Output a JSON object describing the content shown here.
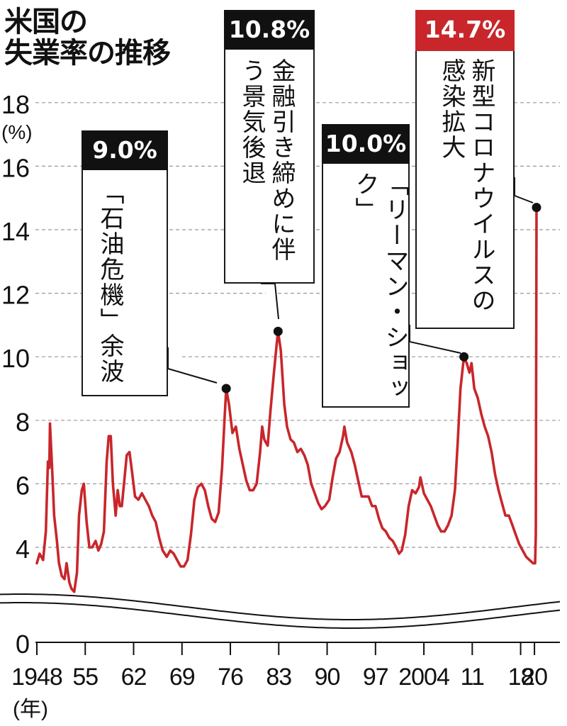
{
  "title_line1": "米国の",
  "title_line2": "失業率の推移",
  "colors": {
    "line": "#c8262b",
    "text": "#111111",
    "grid": "#999999",
    "red_box": "#c8262b"
  },
  "chart_data": {
    "type": "line",
    "title": "米国の失業率の推移",
    "ylabel_unit": "(%)",
    "xlabel_unit": "(年)",
    "ylim": [
      0,
      18
    ],
    "yticks": [
      0,
      4,
      6,
      8,
      10,
      12,
      14,
      16,
      18
    ],
    "axis_break": "between 0 and 4",
    "grid": "horizontal dashed",
    "x_tick_labels": [
      "1948",
      "55",
      "62",
      "69",
      "76",
      "83",
      "90",
      "97",
      "2004",
      "11",
      "18",
      "20"
    ],
    "x_tick_years": [
      1948,
      1955,
      1962,
      1969,
      1976,
      1983,
      1990,
      1997,
      2004,
      2011,
      2018,
      2020
    ],
    "series": [
      {
        "values": [
          [
            1948.0,
            3.5
          ],
          [
            1948.4,
            3.8
          ],
          [
            1948.9,
            3.6
          ],
          [
            1949.3,
            4.5
          ],
          [
            1949.6,
            6.7
          ],
          [
            1949.8,
            6.5
          ],
          [
            1949.9,
            7.9
          ],
          [
            1950.2,
            6.5
          ],
          [
            1950.5,
            5.0
          ],
          [
            1950.9,
            4.2
          ],
          [
            1951.2,
            3.5
          ],
          [
            1951.6,
            3.1
          ],
          [
            1952.0,
            3.0
          ],
          [
            1952.3,
            3.5
          ],
          [
            1952.7,
            2.9
          ],
          [
            1953.0,
            2.7
          ],
          [
            1953.4,
            2.6
          ],
          [
            1953.8,
            3.2
          ],
          [
            1954.1,
            5.0
          ],
          [
            1954.5,
            5.8
          ],
          [
            1954.8,
            6.0
          ],
          [
            1955.2,
            4.8
          ],
          [
            1955.6,
            4.0
          ],
          [
            1956.0,
            4.0
          ],
          [
            1956.5,
            4.2
          ],
          [
            1956.9,
            3.9
          ],
          [
            1957.3,
            4.1
          ],
          [
            1957.7,
            4.5
          ],
          [
            1958.1,
            6.7
          ],
          [
            1958.4,
            7.5
          ],
          [
            1958.7,
            7.5
          ],
          [
            1959.0,
            6.0
          ],
          [
            1959.4,
            5.0
          ],
          [
            1959.7,
            5.8
          ],
          [
            1960.0,
            5.3
          ],
          [
            1960.3,
            5.3
          ],
          [
            1960.7,
            6.2
          ],
          [
            1961.0,
            6.9
          ],
          [
            1961.4,
            7.0
          ],
          [
            1961.7,
            6.5
          ],
          [
            1962.2,
            5.6
          ],
          [
            1962.7,
            5.5
          ],
          [
            1963.2,
            5.7
          ],
          [
            1963.7,
            5.5
          ],
          [
            1964.2,
            5.3
          ],
          [
            1964.7,
            5.0
          ],
          [
            1965.2,
            4.8
          ],
          [
            1965.7,
            4.3
          ],
          [
            1966.2,
            3.9
          ],
          [
            1966.8,
            3.7
          ],
          [
            1967.3,
            3.9
          ],
          [
            1967.8,
            3.8
          ],
          [
            1968.3,
            3.6
          ],
          [
            1968.8,
            3.4
          ],
          [
            1969.3,
            3.4
          ],
          [
            1969.8,
            3.6
          ],
          [
            1970.3,
            4.4
          ],
          [
            1970.8,
            5.5
          ],
          [
            1971.3,
            5.9
          ],
          [
            1971.8,
            6.0
          ],
          [
            1972.3,
            5.8
          ],
          [
            1972.8,
            5.3
          ],
          [
            1973.3,
            4.9
          ],
          [
            1973.8,
            4.8
          ],
          [
            1974.3,
            5.1
          ],
          [
            1974.8,
            6.5
          ],
          [
            1975.2,
            8.2
          ],
          [
            1975.4,
            9.0
          ],
          [
            1975.8,
            8.5
          ],
          [
            1976.3,
            7.6
          ],
          [
            1976.8,
            7.8
          ],
          [
            1977.3,
            7.1
          ],
          [
            1977.8,
            6.6
          ],
          [
            1978.3,
            6.1
          ],
          [
            1978.8,
            5.8
          ],
          [
            1979.3,
            5.8
          ],
          [
            1979.8,
            6.0
          ],
          [
            1980.3,
            7.0
          ],
          [
            1980.6,
            7.8
          ],
          [
            1980.9,
            7.4
          ],
          [
            1981.4,
            7.2
          ],
          [
            1981.8,
            8.3
          ],
          [
            1982.3,
            9.5
          ],
          [
            1982.7,
            10.4
          ],
          [
            1982.9,
            10.8
          ],
          [
            1983.3,
            10.2
          ],
          [
            1983.8,
            8.5
          ],
          [
            1984.2,
            7.8
          ],
          [
            1984.7,
            7.4
          ],
          [
            1985.2,
            7.3
          ],
          [
            1985.7,
            7.0
          ],
          [
            1986.2,
            7.1
          ],
          [
            1986.7,
            6.9
          ],
          [
            1987.2,
            6.6
          ],
          [
            1987.7,
            6.0
          ],
          [
            1988.2,
            5.7
          ],
          [
            1988.7,
            5.4
          ],
          [
            1989.2,
            5.2
          ],
          [
            1989.7,
            5.3
          ],
          [
            1990.3,
            5.5
          ],
          [
            1990.8,
            6.2
          ],
          [
            1991.3,
            6.8
          ],
          [
            1991.8,
            7.0
          ],
          [
            1992.3,
            7.5
          ],
          [
            1992.5,
            7.8
          ],
          [
            1992.9,
            7.3
          ],
          [
            1993.5,
            7.0
          ],
          [
            1994.0,
            6.6
          ],
          [
            1994.5,
            6.1
          ],
          [
            1995.0,
            5.6
          ],
          [
            1995.5,
            5.6
          ],
          [
            1996.0,
            5.6
          ],
          [
            1996.5,
            5.3
          ],
          [
            1997.0,
            5.3
          ],
          [
            1997.5,
            4.9
          ],
          [
            1998.0,
            4.6
          ],
          [
            1998.5,
            4.5
          ],
          [
            1999.0,
            4.3
          ],
          [
            1999.5,
            4.2
          ],
          [
            2000.0,
            4.0
          ],
          [
            2000.4,
            3.8
          ],
          [
            2000.8,
            3.9
          ],
          [
            2001.3,
            4.4
          ],
          [
            2001.8,
            5.3
          ],
          [
            2002.3,
            5.8
          ],
          [
            2002.8,
            5.7
          ],
          [
            2003.3,
            5.9
          ],
          [
            2003.5,
            6.2
          ],
          [
            2004.0,
            5.7
          ],
          [
            2004.5,
            5.5
          ],
          [
            2005.0,
            5.3
          ],
          [
            2005.5,
            5.0
          ],
          [
            2006.0,
            4.7
          ],
          [
            2006.5,
            4.5
          ],
          [
            2007.0,
            4.5
          ],
          [
            2007.5,
            4.7
          ],
          [
            2008.0,
            5.0
          ],
          [
            2008.5,
            5.8
          ],
          [
            2008.9,
            7.3
          ],
          [
            2009.3,
            9.0
          ],
          [
            2009.8,
            10.0
          ],
          [
            2010.2,
            9.8
          ],
          [
            2010.6,
            9.5
          ],
          [
            2010.9,
            9.8
          ],
          [
            2011.3,
            9.0
          ],
          [
            2011.8,
            8.7
          ],
          [
            2012.3,
            8.2
          ],
          [
            2012.8,
            7.8
          ],
          [
            2013.3,
            7.5
          ],
          [
            2013.8,
            7.0
          ],
          [
            2014.3,
            6.3
          ],
          [
            2014.8,
            5.8
          ],
          [
            2015.3,
            5.4
          ],
          [
            2015.8,
            5.0
          ],
          [
            2016.3,
            5.0
          ],
          [
            2016.8,
            4.7
          ],
          [
            2017.3,
            4.4
          ],
          [
            2017.8,
            4.1
          ],
          [
            2018.3,
            3.9
          ],
          [
            2018.8,
            3.7
          ],
          [
            2019.3,
            3.6
          ],
          [
            2019.8,
            3.5
          ],
          [
            2020.1,
            3.5
          ],
          [
            2020.2,
            4.4
          ],
          [
            2020.3,
            14.7
          ]
        ]
      }
    ],
    "annotations": [
      {
        "x": 1975.4,
        "y": 9.0,
        "value": "9.0%",
        "text": "「石油危機」余波"
      },
      {
        "x": 1982.9,
        "y": 10.8,
        "value": "10.8%",
        "text": "金融引き締めに伴う景気後退"
      },
      {
        "x": 2009.8,
        "y": 10.0,
        "value": "10.0%",
        "text": "「リーマン・ショック」"
      },
      {
        "x": 2020.3,
        "y": 14.7,
        "value": "14.7%",
        "text": "新型コロナウイルスの感染拡大"
      }
    ]
  }
}
